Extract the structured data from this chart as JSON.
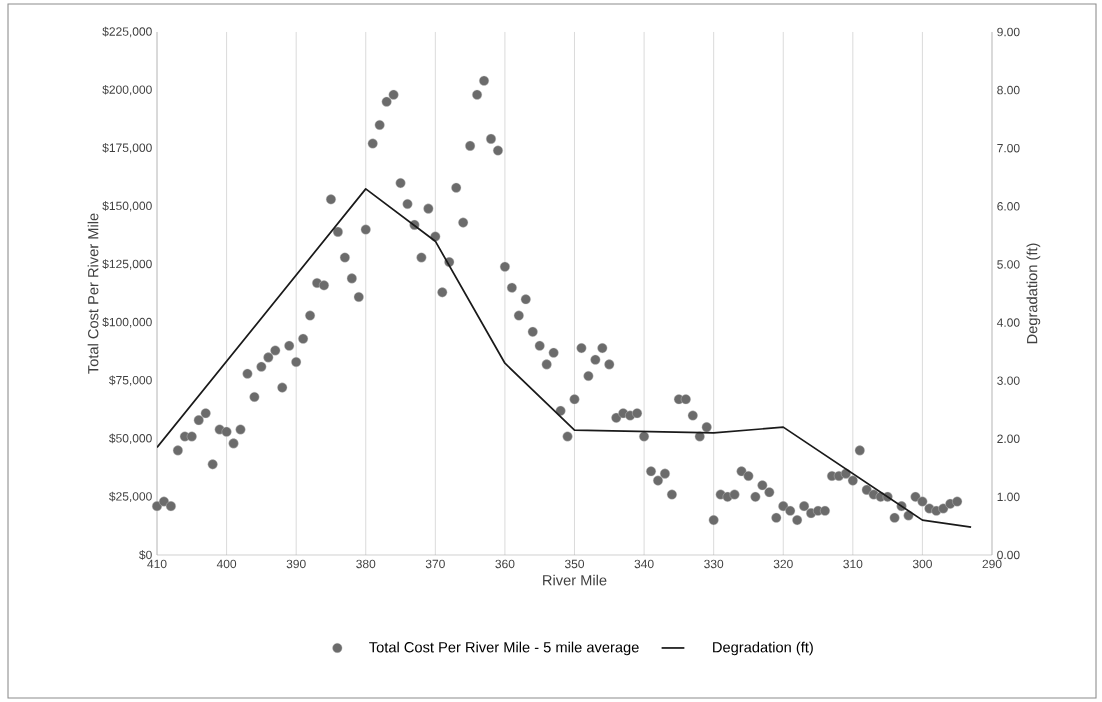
{
  "chart_data": {
    "type": "scatter",
    "xlabel": "River Mile",
    "ylabel": "Total Cost Per River Mile",
    "y2label": "Degradation (ft)",
    "xlim": [
      410,
      290
    ],
    "xticks": [
      410,
      400,
      390,
      380,
      370,
      360,
      350,
      340,
      330,
      320,
      310,
      300,
      290
    ],
    "ylim": [
      0,
      225000
    ],
    "yticks": [
      {
        "value": 0,
        "label": "$0"
      },
      {
        "value": 25000,
        "label": "$25,000"
      },
      {
        "value": 50000,
        "label": "$50,000"
      },
      {
        "value": 75000,
        "label": "$75,000"
      },
      {
        "value": 100000,
        "label": "$100,000"
      },
      {
        "value": 125000,
        "label": "$125,000"
      },
      {
        "value": 150000,
        "label": "$150,000"
      },
      {
        "value": 175000,
        "label": "$175,000"
      },
      {
        "value": 200000,
        "label": "$200,000"
      },
      {
        "value": 225000,
        "label": "$225,000"
      }
    ],
    "y2lim": [
      0,
      9
    ],
    "y2ticks": [
      {
        "value": 0,
        "label": "0.00"
      },
      {
        "value": 1,
        "label": "1.00"
      },
      {
        "value": 2,
        "label": "2.00"
      },
      {
        "value": 3,
        "label": "3.00"
      },
      {
        "value": 4,
        "label": "4.00"
      },
      {
        "value": 5,
        "label": "5.00"
      },
      {
        "value": 6,
        "label": "6.00"
      },
      {
        "value": 7,
        "label": "7.00"
      },
      {
        "value": 8,
        "label": "8.00"
      },
      {
        "value": 9,
        "label": "9.00"
      }
    ],
    "grid": "x",
    "legend": "bottom",
    "series": [
      {
        "name": "Total Cost Per River Mile - 5 mile average",
        "color": "#6b6b6b",
        "marker": "circle",
        "x": [
          410,
          409,
          408,
          407,
          406,
          405,
          404,
          403,
          402,
          401,
          400,
          399,
          398,
          397,
          396,
          395,
          394,
          393,
          392,
          391,
          390,
          389,
          388,
          387,
          386,
          385,
          384,
          383,
          382,
          381,
          380,
          379,
          378,
          377,
          376,
          375,
          374,
          373,
          372,
          371,
          370,
          369,
          368,
          367,
          366,
          365,
          364,
          363,
          362,
          361,
          360,
          359,
          358,
          357,
          356,
          355,
          354,
          353,
          352,
          351,
          350,
          349,
          348,
          347,
          346,
          345,
          344,
          343,
          342,
          341,
          340,
          339,
          338,
          337,
          336,
          335,
          334,
          333,
          332,
          331,
          330,
          329,
          328,
          327,
          326,
          325,
          324,
          323,
          322,
          321,
          320,
          319,
          318,
          317,
          316,
          315,
          314,
          313,
          312,
          311,
          310,
          309,
          308,
          307,
          306,
          305,
          304,
          303,
          302,
          301,
          300,
          299,
          298,
          297,
          296,
          295
        ],
        "values": [
          21000,
          23000,
          21000,
          45000,
          51000,
          51000,
          58000,
          61000,
          39000,
          54000,
          53000,
          48000,
          54000,
          78000,
          68000,
          81000,
          85000,
          88000,
          72000,
          90000,
          83000,
          93000,
          103000,
          117000,
          116000,
          153000,
          139000,
          128000,
          119000,
          111000,
          140000,
          177000,
          185000,
          195000,
          198000,
          160000,
          151000,
          142000,
          128000,
          149000,
          137000,
          113000,
          126000,
          158000,
          143000,
          176000,
          198000,
          204000,
          179000,
          174000,
          124000,
          115000,
          103000,
          110000,
          96000,
          90000,
          82000,
          87000,
          62000,
          51000,
          67000,
          89000,
          77000,
          84000,
          89000,
          82000,
          59000,
          61000,
          60000,
          61000,
          51000,
          36000,
          32000,
          35000,
          26000,
          67000,
          67000,
          60000,
          51000,
          55000,
          15000,
          26000,
          25000,
          26000,
          36000,
          34000,
          25000,
          30000,
          27000,
          16000,
          21000,
          19000,
          15000,
          21000,
          18000,
          19000,
          19000,
          34000,
          34000,
          35000,
          32000,
          45000,
          28000,
          26000,
          25000,
          25000,
          16000,
          21000,
          17000,
          25000,
          23000,
          20000,
          19000,
          20000,
          22000,
          23000
        ]
      },
      {
        "name": "Degradation (ft)",
        "type": "line",
        "axis": "y2",
        "color": "#1a1a1a",
        "line_style": "solid",
        "x": [
          410,
          380,
          370,
          360,
          350,
          330,
          320,
          300,
          293
        ],
        "values": [
          1.85,
          6.3,
          5.4,
          3.3,
          2.15,
          2.1,
          2.2,
          0.6,
          0.48
        ]
      }
    ]
  }
}
